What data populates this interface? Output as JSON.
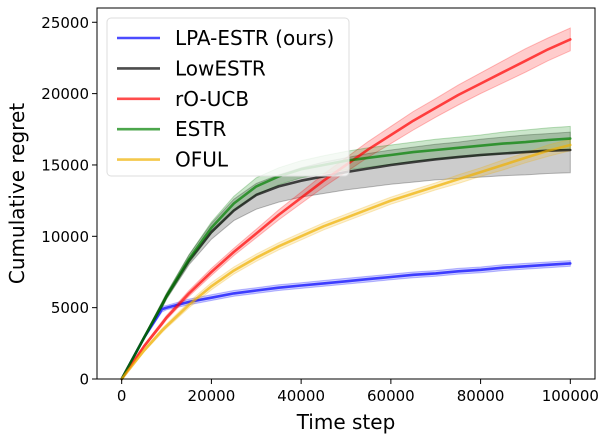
{
  "chart_data": {
    "type": "line",
    "xlabel": "Time step",
    "ylabel": "Cumulative regret",
    "xlim": [
      -5500,
      105500
    ],
    "ylim": [
      0,
      26000
    ],
    "xticks": [
      0,
      20000,
      40000,
      60000,
      80000,
      100000
    ],
    "yticks": [
      0,
      5000,
      10000,
      15000,
      20000,
      25000
    ],
    "xtick_labels": [
      "0",
      "20000",
      "40000",
      "60000",
      "80000",
      "100000"
    ],
    "ytick_labels": [
      "0",
      "5000",
      "10000",
      "15000",
      "20000",
      "25000"
    ],
    "grid": false,
    "legend_position": "upper-left",
    "x": [
      0,
      5000,
      9000,
      10000,
      15000,
      20000,
      25000,
      30000,
      35000,
      40000,
      45000,
      50000,
      55000,
      60000,
      65000,
      70000,
      75000,
      80000,
      85000,
      90000,
      95000,
      100000
    ],
    "series": [
      {
        "name": "LPA-ESTR (ours)",
        "color": "#0000ff",
        "values": [
          0,
          2900,
          4900,
          5000,
          5400,
          5700,
          6000,
          6200,
          6400,
          6550,
          6700,
          6850,
          7000,
          7150,
          7300,
          7400,
          7550,
          7650,
          7800,
          7900,
          8000,
          8100
        ],
        "lower": [
          0,
          2800,
          4700,
          4850,
          5200,
          5500,
          5800,
          6000,
          6200,
          6350,
          6500,
          6650,
          6800,
          6950,
          7100,
          7200,
          7350,
          7450,
          7600,
          7700,
          7800,
          7900
        ],
        "upper": [
          0,
          3000,
          5100,
          5150,
          5600,
          5900,
          6200,
          6400,
          6600,
          6750,
          6900,
          7050,
          7200,
          7350,
          7500,
          7600,
          7750,
          7850,
          8000,
          8100,
          8200,
          8300
        ]
      },
      {
        "name": "LowESTR",
        "color": "#000000",
        "values": [
          0,
          2900,
          5200,
          5800,
          8300,
          10300,
          11800,
          12900,
          13500,
          13900,
          14200,
          14500,
          14750,
          15000,
          15200,
          15400,
          15550,
          15700,
          15800,
          15900,
          16000,
          16050
        ],
        "lower": [
          0,
          2800,
          5000,
          5600,
          8000,
          9800,
          11100,
          11900,
          12400,
          12750,
          13000,
          13250,
          13450,
          13650,
          13800,
          13950,
          14050,
          14150,
          14250,
          14300,
          14400,
          14450
        ],
        "upper": [
          0,
          3000,
          5400,
          6000,
          8700,
          10900,
          12600,
          13700,
          14300,
          14800,
          15200,
          15500,
          15800,
          16050,
          16250,
          16450,
          16600,
          16800,
          16950,
          17100,
          17200,
          17300
        ]
      },
      {
        "name": "rO-UCB",
        "color": "#ff0000",
        "values": [
          0,
          2300,
          3900,
          4300,
          6000,
          7500,
          8900,
          10200,
          11500,
          12700,
          13900,
          15000,
          16100,
          17100,
          18100,
          19000,
          19900,
          20700,
          21500,
          22300,
          23100,
          23800
        ],
        "lower": [
          0,
          2200,
          3750,
          4150,
          5800,
          7250,
          8650,
          9900,
          11150,
          12300,
          13450,
          14500,
          15550,
          16500,
          17450,
          18350,
          19200,
          20000,
          20750,
          21500,
          22300,
          23000
        ],
        "upper": [
          0,
          2400,
          4050,
          4450,
          6200,
          7750,
          9150,
          10500,
          11850,
          13100,
          14350,
          15500,
          16650,
          17700,
          18750,
          19650,
          20600,
          21450,
          22300,
          23150,
          23900,
          24600
        ]
      },
      {
        "name": "ESTR",
        "color": "#008000",
        "values": [
          0,
          2900,
          5200,
          5800,
          8400,
          10600,
          12300,
          13500,
          14200,
          14700,
          15000,
          15300,
          15500,
          15700,
          15900,
          16050,
          16200,
          16350,
          16500,
          16600,
          16750,
          16850
        ],
        "lower": [
          0,
          2800,
          5000,
          5600,
          8100,
          10200,
          11800,
          12900,
          13600,
          14100,
          14400,
          14650,
          14850,
          15050,
          15250,
          15400,
          15550,
          15650,
          15800,
          15900,
          16000,
          16100
        ],
        "upper": [
          0,
          3000,
          5400,
          6000,
          8700,
          11000,
          12800,
          14100,
          14800,
          15300,
          15650,
          15950,
          16200,
          16400,
          16600,
          16800,
          16950,
          17100,
          17300,
          17450,
          17600,
          17700
        ]
      },
      {
        "name": "OFUL",
        "color": "#f0b000",
        "values": [
          0,
          2000,
          3400,
          3700,
          5200,
          6500,
          7600,
          8500,
          9300,
          10000,
          10700,
          11300,
          11900,
          12500,
          13000,
          13500,
          14000,
          14500,
          15000,
          15500,
          16000,
          16400
        ],
        "lower": [
          0,
          1900,
          3250,
          3550,
          5000,
          6250,
          7350,
          8250,
          9050,
          9750,
          10450,
          11050,
          11650,
          12250,
          12750,
          13250,
          13700,
          14200,
          14650,
          15150,
          15600,
          16000
        ],
        "upper": [
          0,
          2100,
          3550,
          3850,
          5400,
          6750,
          7850,
          8750,
          9550,
          10250,
          10950,
          11550,
          12150,
          12750,
          13250,
          13750,
          14300,
          14800,
          15350,
          15850,
          16400,
          16800
        ]
      }
    ]
  }
}
